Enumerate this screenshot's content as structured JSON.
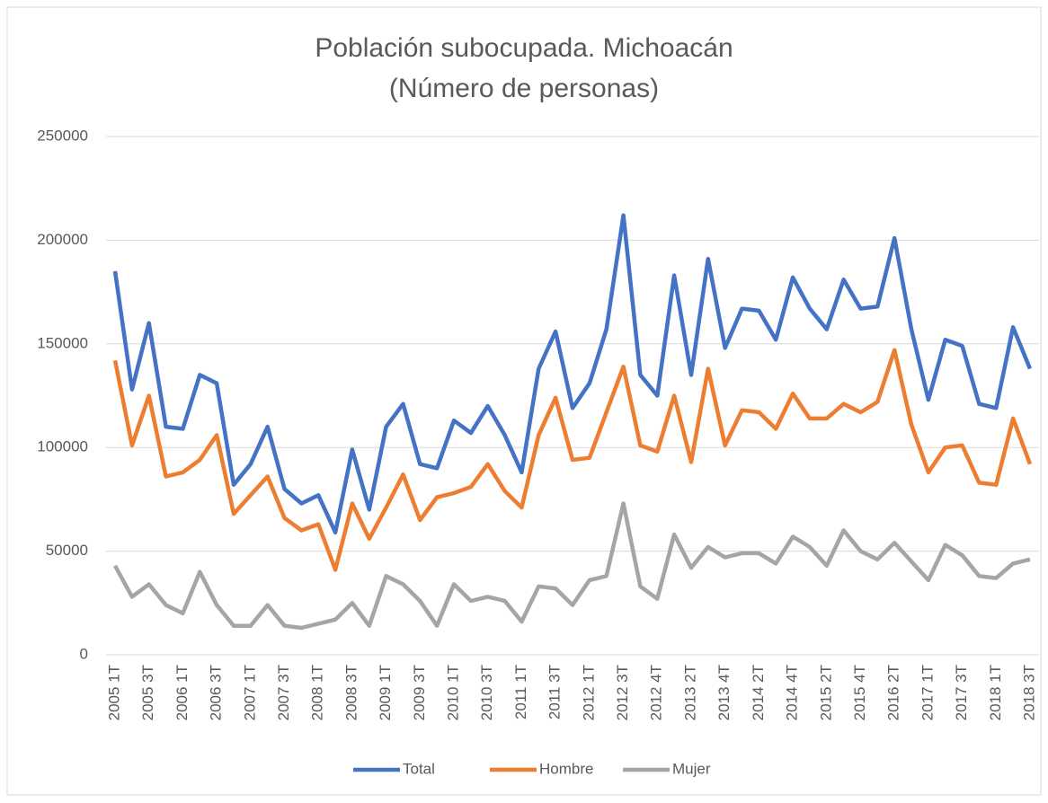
{
  "chart_data": {
    "type": "line",
    "title": "Población subocupada. Michoacán",
    "subtitle": "(Número de personas)",
    "categories": [
      "2005 1T",
      null,
      "2005 3T",
      null,
      "2006 1T",
      null,
      "2006 3T",
      null,
      "2007 1T",
      null,
      "2007 3T",
      null,
      "2008 1T",
      null,
      "2008 3T",
      null,
      "2009 1T",
      null,
      "2009 3T",
      null,
      "2010 1T",
      null,
      "2010 3T",
      null,
      "2011 1T",
      null,
      "2011 3T",
      null,
      "2012 1T",
      null,
      "2012 3T",
      null,
      "2012 4T",
      null,
      "2013 2T",
      null,
      "2013 4T",
      null,
      "2014 2T",
      null,
      "2014 4T",
      null,
      "2015 2T",
      null,
      "2015 4T",
      null,
      "2016 2T",
      null,
      "2017 1T",
      null,
      "2017 3T",
      null,
      "2018 1T",
      null,
      "2018 3T"
    ],
    "series": [
      {
        "name": "Total",
        "color": "#4472c4",
        "values": [
          185000,
          128000,
          160000,
          110000,
          109000,
          135000,
          131000,
          82000,
          92000,
          110000,
          80000,
          73000,
          77000,
          59000,
          99000,
          70000,
          110000,
          121000,
          92000,
          90000,
          113000,
          107000,
          120000,
          106000,
          88000,
          138000,
          156000,
          119000,
          131000,
          157000,
          212000,
          135000,
          125000,
          183000,
          135000,
          191000,
          148000,
          167000,
          166000,
          152000,
          182000,
          167000,
          157000,
          181000,
          167000,
          168000,
          201000,
          157000,
          123000,
          152000,
          149000,
          121000,
          119000,
          158000,
          138000
        ]
      },
      {
        "name": "Hombre",
        "color": "#ed7d31",
        "values": [
          142000,
          101000,
          125000,
          86000,
          88000,
          94000,
          106000,
          68000,
          77000,
          86000,
          66000,
          60000,
          63000,
          41000,
          73000,
          56000,
          71000,
          87000,
          65000,
          76000,
          78000,
          81000,
          92000,
          79000,
          71000,
          106000,
          124000,
          94000,
          95000,
          117000,
          139000,
          101000,
          98000,
          125000,
          93000,
          138000,
          101000,
          118000,
          117000,
          109000,
          126000,
          114000,
          114000,
          121000,
          117000,
          122000,
          147000,
          111000,
          88000,
          100000,
          101000,
          83000,
          82000,
          114000,
          92000
        ]
      },
      {
        "name": "Mujer",
        "color": "#a5a5a5",
        "values": [
          43000,
          28000,
          34000,
          24000,
          20000,
          40000,
          24000,
          14000,
          14000,
          24000,
          14000,
          13000,
          15000,
          17000,
          25000,
          14000,
          38000,
          34000,
          26000,
          14000,
          34000,
          26000,
          28000,
          26000,
          16000,
          33000,
          32000,
          24000,
          36000,
          38000,
          73000,
          33000,
          27000,
          58000,
          42000,
          52000,
          47000,
          49000,
          49000,
          44000,
          57000,
          52000,
          43000,
          60000,
          50000,
          46000,
          54000,
          45000,
          36000,
          53000,
          48000,
          38000,
          37000,
          44000,
          46000
        ]
      }
    ],
    "ylim": [
      0,
      250000
    ],
    "yticks": [
      0,
      50000,
      100000,
      150000,
      200000,
      250000
    ],
    "grid": true,
    "legend": "bottom"
  }
}
